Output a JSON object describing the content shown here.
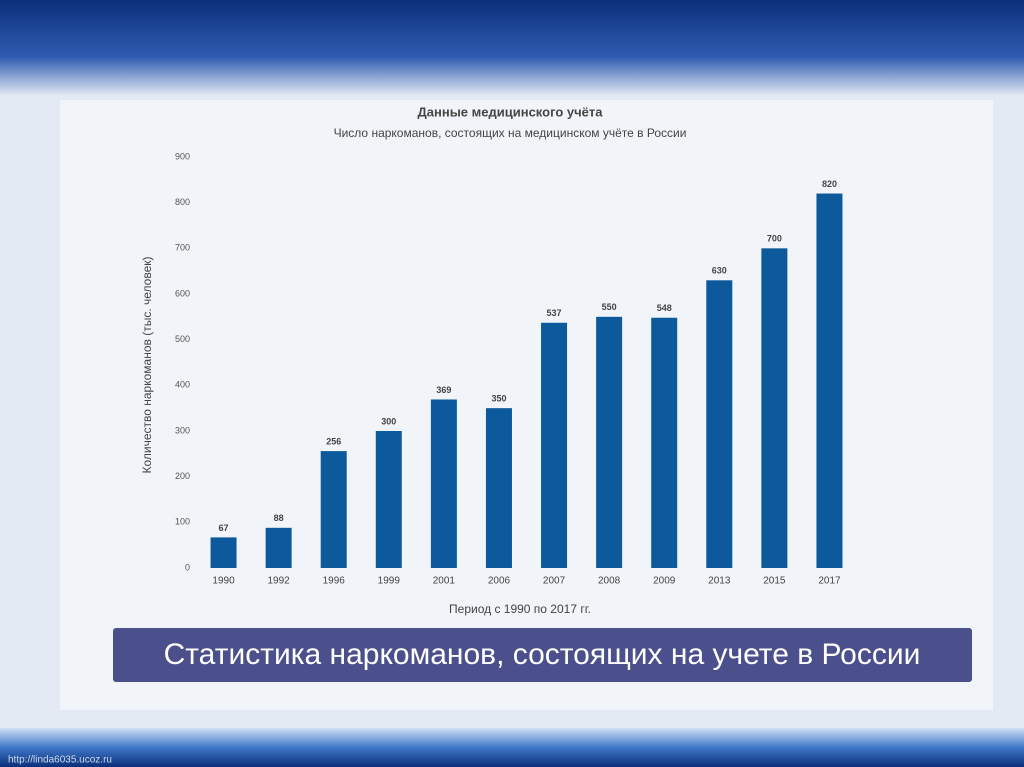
{
  "chart_data": {
    "type": "bar",
    "title": "Данные медицинского учёта",
    "subtitle": "Число наркоманов, состоящих на медицинском учёте в России",
    "y_label": "Количество наркоманов (тыс. человек)",
    "x_label": "Период с 1990 по 2017 гг.",
    "categories": [
      "1990",
      "1992",
      "1996",
      "1999",
      "2001",
      "2006",
      "2007",
      "2008",
      "2009",
      "2013",
      "2015",
      "2017"
    ],
    "values": [
      67,
      88,
      256,
      300,
      369,
      350,
      537,
      550,
      548,
      630,
      700,
      820
    ],
    "color": "#0c5a9c",
    "ylim": [
      0,
      900
    ],
    "yticks": [
      0,
      100,
      200,
      300,
      400,
      500,
      600,
      700,
      800,
      900
    ],
    "grid": false
  },
  "caption": "Статистика наркоманов, состоящих на учете в России",
  "footer": "http://linda6035.ucoz.ru"
}
